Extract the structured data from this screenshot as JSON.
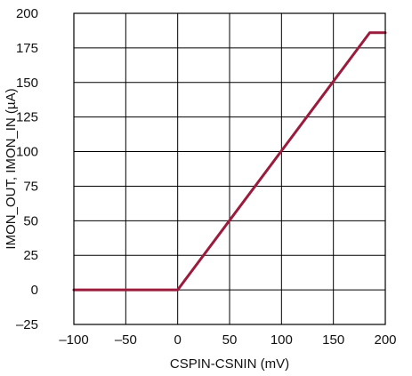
{
  "chart_data": {
    "type": "line",
    "title": "",
    "xlabel": "CSPIN-CSNIN (mV)",
    "ylabel": "IMON_OUT, IMON_IN (µA)",
    "xlim": [
      -100,
      200
    ],
    "ylim": [
      -25,
      200
    ],
    "x_ticks": [
      -100,
      -50,
      0,
      50,
      100,
      150,
      200
    ],
    "y_ticks": [
      -25,
      0,
      25,
      50,
      75,
      100,
      125,
      150,
      175,
      200
    ],
    "x_tick_labels": [
      "–100",
      "–50",
      "0",
      "50",
      "100",
      "150",
      "200"
    ],
    "y_tick_labels": [
      "–25",
      "0",
      "25",
      "50",
      "75",
      "100",
      "125",
      "150",
      "175",
      "200"
    ],
    "grid": true,
    "legend": "none",
    "series": [
      {
        "color": "#9b1b3c",
        "x": [
          -100,
          0,
          185,
          200
        ],
        "y": [
          0,
          0,
          186,
          186
        ]
      }
    ]
  }
}
